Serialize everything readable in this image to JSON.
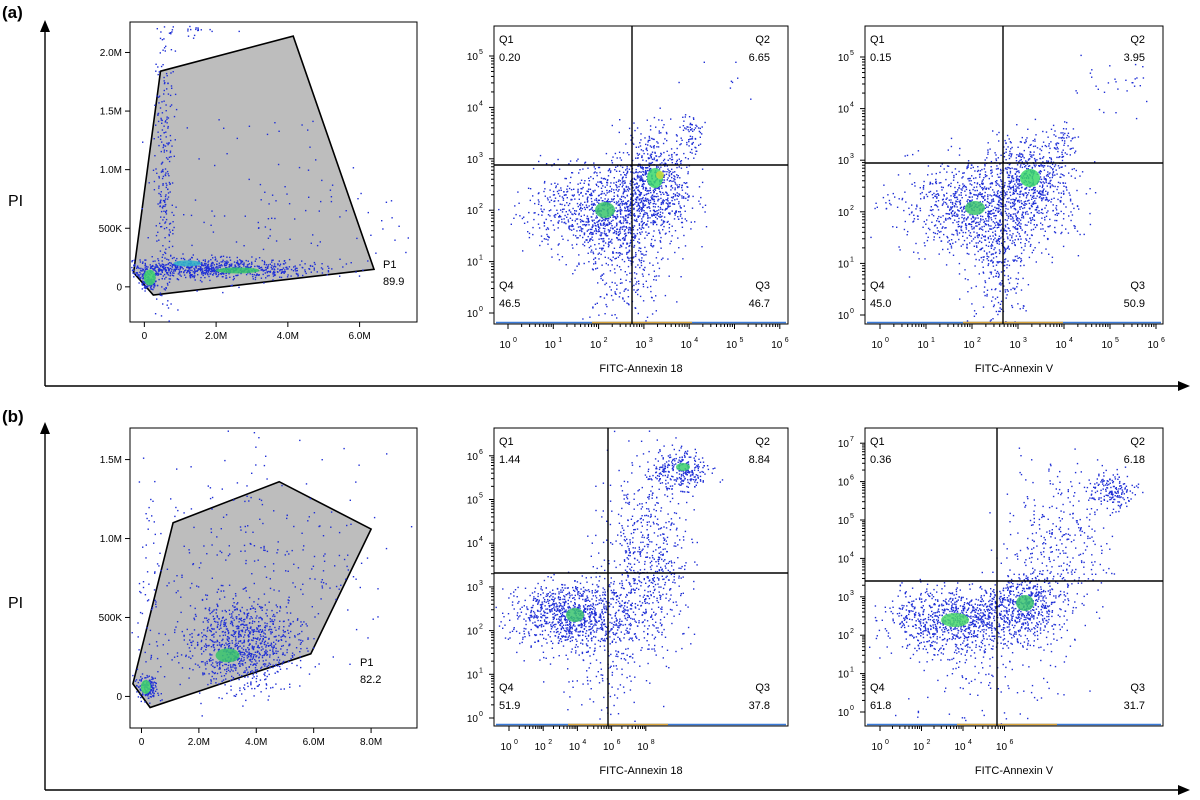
{
  "rows": [
    {
      "label": "(a)",
      "ylabel": "PI"
    },
    {
      "label": "(b)",
      "ylabel": "PI"
    }
  ],
  "chart_data": [
    {
      "type": "scatter",
      "panel": "a1",
      "xlabel": "",
      "ylabel": "",
      "xlim": [
        -0.4,
        7.6
      ],
      "ylim": [
        -0.3,
        2.26
      ],
      "x_ticks": [
        "0",
        "2.0M",
        "4.0M",
        "6.0M"
      ],
      "y_ticks": [
        "0",
        "500K",
        "1.0M",
        "1.5M",
        "2.0M"
      ],
      "gate": {
        "name": "P1",
        "value": "89.9"
      }
    },
    {
      "type": "scatter",
      "panel": "a2",
      "xlabel": "FITC-Annexin 18",
      "ylabel": "",
      "scale": "log",
      "x_ticks": [
        "0",
        "1",
        "2",
        "3",
        "4",
        "5",
        "6"
      ],
      "y_ticks": [
        "0",
        "1",
        "2",
        "3",
        "4",
        "5"
      ],
      "quadrants": [
        {
          "name": "Q1",
          "value": "0.20"
        },
        {
          "name": "Q2",
          "value": "6.65"
        },
        {
          "name": "Q3",
          "value": "46.7"
        },
        {
          "name": "Q4",
          "value": "46.5"
        }
      ]
    },
    {
      "type": "scatter",
      "panel": "a3",
      "xlabel": "FITC-Annexin V",
      "ylabel": "",
      "scale": "log",
      "x_ticks": [
        "0",
        "1",
        "2",
        "3",
        "4",
        "5",
        "6"
      ],
      "y_ticks": [
        "0",
        "1",
        "2",
        "3",
        "4",
        "5"
      ],
      "quadrants": [
        {
          "name": "Q1",
          "value": "0.15"
        },
        {
          "name": "Q2",
          "value": "3.95"
        },
        {
          "name": "Q3",
          "value": "50.9"
        },
        {
          "name": "Q4",
          "value": "45.0"
        }
      ]
    },
    {
      "type": "scatter",
      "panel": "b1",
      "xlabel": "",
      "ylabel": "",
      "xlim": [
        -0.4,
        9.6
      ],
      "ylim": [
        -0.2,
        1.7
      ],
      "x_ticks": [
        "0",
        "2.0M",
        "4.0M",
        "6.0M",
        "8.0M"
      ],
      "y_ticks": [
        "0",
        "500K",
        "1.0M",
        "1.5M"
      ],
      "gate": {
        "name": "P1",
        "value": "82.2"
      }
    },
    {
      "type": "scatter",
      "panel": "b2",
      "xlabel": "FITC-Annexin 18",
      "ylabel": "",
      "scale": "log",
      "x_ticks": [
        "0",
        "2",
        "4",
        "6",
        "8"
      ],
      "y_ticks": [
        "0",
        "1",
        "2",
        "3",
        "4",
        "5",
        "6"
      ],
      "quadrants": [
        {
          "name": "Q1",
          "value": "1.44"
        },
        {
          "name": "Q2",
          "value": "8.84"
        },
        {
          "name": "Q3",
          "value": "37.8"
        },
        {
          "name": "Q4",
          "value": "51.9"
        }
      ]
    },
    {
      "type": "scatter",
      "panel": "b3",
      "xlabel": "FITC-Annexin V",
      "ylabel": "",
      "scale": "log",
      "x_ticks": [
        "0",
        "2",
        "4",
        "6"
      ],
      "y_ticks": [
        "0",
        "1",
        "2",
        "3",
        "4",
        "5",
        "6",
        "7"
      ],
      "quadrants": [
        {
          "name": "Q1",
          "value": "0.36"
        },
        {
          "name": "Q2",
          "value": "6.18"
        },
        {
          "name": "Q3",
          "value": "31.7"
        },
        {
          "name": "Q4",
          "value": "61.8"
        }
      ]
    }
  ]
}
